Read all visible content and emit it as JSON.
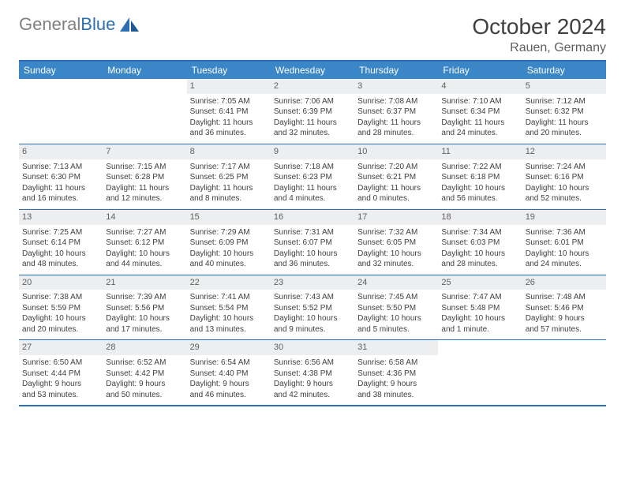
{
  "logo": {
    "text_gray": "General",
    "text_blue": "Blue"
  },
  "title": "October 2024",
  "location": "Rauen, Germany",
  "colors": {
    "header_bg": "#3b86c6",
    "border": "#2d6fb5",
    "daynum_bg": "#eceeef",
    "text": "#404040",
    "logo_gray": "#808080",
    "logo_blue": "#2d6fb5"
  },
  "day_names": [
    "Sunday",
    "Monday",
    "Tuesday",
    "Wednesday",
    "Thursday",
    "Friday",
    "Saturday"
  ],
  "weeks": [
    [
      null,
      null,
      {
        "n": "1",
        "sr": "Sunrise: 7:05 AM",
        "ss": "Sunset: 6:41 PM",
        "d1": "Daylight: 11 hours",
        "d2": "and 36 minutes."
      },
      {
        "n": "2",
        "sr": "Sunrise: 7:06 AM",
        "ss": "Sunset: 6:39 PM",
        "d1": "Daylight: 11 hours",
        "d2": "and 32 minutes."
      },
      {
        "n": "3",
        "sr": "Sunrise: 7:08 AM",
        "ss": "Sunset: 6:37 PM",
        "d1": "Daylight: 11 hours",
        "d2": "and 28 minutes."
      },
      {
        "n": "4",
        "sr": "Sunrise: 7:10 AM",
        "ss": "Sunset: 6:34 PM",
        "d1": "Daylight: 11 hours",
        "d2": "and 24 minutes."
      },
      {
        "n": "5",
        "sr": "Sunrise: 7:12 AM",
        "ss": "Sunset: 6:32 PM",
        "d1": "Daylight: 11 hours",
        "d2": "and 20 minutes."
      }
    ],
    [
      {
        "n": "6",
        "sr": "Sunrise: 7:13 AM",
        "ss": "Sunset: 6:30 PM",
        "d1": "Daylight: 11 hours",
        "d2": "and 16 minutes."
      },
      {
        "n": "7",
        "sr": "Sunrise: 7:15 AM",
        "ss": "Sunset: 6:28 PM",
        "d1": "Daylight: 11 hours",
        "d2": "and 12 minutes."
      },
      {
        "n": "8",
        "sr": "Sunrise: 7:17 AM",
        "ss": "Sunset: 6:25 PM",
        "d1": "Daylight: 11 hours",
        "d2": "and 8 minutes."
      },
      {
        "n": "9",
        "sr": "Sunrise: 7:18 AM",
        "ss": "Sunset: 6:23 PM",
        "d1": "Daylight: 11 hours",
        "d2": "and 4 minutes."
      },
      {
        "n": "10",
        "sr": "Sunrise: 7:20 AM",
        "ss": "Sunset: 6:21 PM",
        "d1": "Daylight: 11 hours",
        "d2": "and 0 minutes."
      },
      {
        "n": "11",
        "sr": "Sunrise: 7:22 AM",
        "ss": "Sunset: 6:18 PM",
        "d1": "Daylight: 10 hours",
        "d2": "and 56 minutes."
      },
      {
        "n": "12",
        "sr": "Sunrise: 7:24 AM",
        "ss": "Sunset: 6:16 PM",
        "d1": "Daylight: 10 hours",
        "d2": "and 52 minutes."
      }
    ],
    [
      {
        "n": "13",
        "sr": "Sunrise: 7:25 AM",
        "ss": "Sunset: 6:14 PM",
        "d1": "Daylight: 10 hours",
        "d2": "and 48 minutes."
      },
      {
        "n": "14",
        "sr": "Sunrise: 7:27 AM",
        "ss": "Sunset: 6:12 PM",
        "d1": "Daylight: 10 hours",
        "d2": "and 44 minutes."
      },
      {
        "n": "15",
        "sr": "Sunrise: 7:29 AM",
        "ss": "Sunset: 6:09 PM",
        "d1": "Daylight: 10 hours",
        "d2": "and 40 minutes."
      },
      {
        "n": "16",
        "sr": "Sunrise: 7:31 AM",
        "ss": "Sunset: 6:07 PM",
        "d1": "Daylight: 10 hours",
        "d2": "and 36 minutes."
      },
      {
        "n": "17",
        "sr": "Sunrise: 7:32 AM",
        "ss": "Sunset: 6:05 PM",
        "d1": "Daylight: 10 hours",
        "d2": "and 32 minutes."
      },
      {
        "n": "18",
        "sr": "Sunrise: 7:34 AM",
        "ss": "Sunset: 6:03 PM",
        "d1": "Daylight: 10 hours",
        "d2": "and 28 minutes."
      },
      {
        "n": "19",
        "sr": "Sunrise: 7:36 AM",
        "ss": "Sunset: 6:01 PM",
        "d1": "Daylight: 10 hours",
        "d2": "and 24 minutes."
      }
    ],
    [
      {
        "n": "20",
        "sr": "Sunrise: 7:38 AM",
        "ss": "Sunset: 5:59 PM",
        "d1": "Daylight: 10 hours",
        "d2": "and 20 minutes."
      },
      {
        "n": "21",
        "sr": "Sunrise: 7:39 AM",
        "ss": "Sunset: 5:56 PM",
        "d1": "Daylight: 10 hours",
        "d2": "and 17 minutes."
      },
      {
        "n": "22",
        "sr": "Sunrise: 7:41 AM",
        "ss": "Sunset: 5:54 PM",
        "d1": "Daylight: 10 hours",
        "d2": "and 13 minutes."
      },
      {
        "n": "23",
        "sr": "Sunrise: 7:43 AM",
        "ss": "Sunset: 5:52 PM",
        "d1": "Daylight: 10 hours",
        "d2": "and 9 minutes."
      },
      {
        "n": "24",
        "sr": "Sunrise: 7:45 AM",
        "ss": "Sunset: 5:50 PM",
        "d1": "Daylight: 10 hours",
        "d2": "and 5 minutes."
      },
      {
        "n": "25",
        "sr": "Sunrise: 7:47 AM",
        "ss": "Sunset: 5:48 PM",
        "d1": "Daylight: 10 hours",
        "d2": "and 1 minute."
      },
      {
        "n": "26",
        "sr": "Sunrise: 7:48 AM",
        "ss": "Sunset: 5:46 PM",
        "d1": "Daylight: 9 hours",
        "d2": "and 57 minutes."
      }
    ],
    [
      {
        "n": "27",
        "sr": "Sunrise: 6:50 AM",
        "ss": "Sunset: 4:44 PM",
        "d1": "Daylight: 9 hours",
        "d2": "and 53 minutes."
      },
      {
        "n": "28",
        "sr": "Sunrise: 6:52 AM",
        "ss": "Sunset: 4:42 PM",
        "d1": "Daylight: 9 hours",
        "d2": "and 50 minutes."
      },
      {
        "n": "29",
        "sr": "Sunrise: 6:54 AM",
        "ss": "Sunset: 4:40 PM",
        "d1": "Daylight: 9 hours",
        "d2": "and 46 minutes."
      },
      {
        "n": "30",
        "sr": "Sunrise: 6:56 AM",
        "ss": "Sunset: 4:38 PM",
        "d1": "Daylight: 9 hours",
        "d2": "and 42 minutes."
      },
      {
        "n": "31",
        "sr": "Sunrise: 6:58 AM",
        "ss": "Sunset: 4:36 PM",
        "d1": "Daylight: 9 hours",
        "d2": "and 38 minutes."
      },
      null,
      null
    ]
  ]
}
